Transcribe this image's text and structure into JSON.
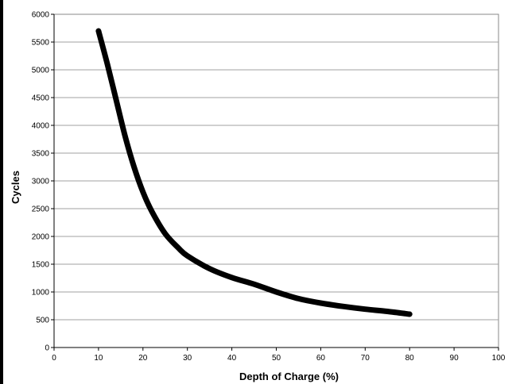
{
  "chart_data": {
    "type": "line",
    "title": "",
    "xlabel": "Depth of Charge (%)",
    "ylabel": "Cycles",
    "xlim": [
      0,
      100
    ],
    "ylim": [
      0,
      6000
    ],
    "x_ticks": [
      "0",
      "10",
      "20",
      "30",
      "40",
      "50",
      "60",
      "70",
      "80",
      "90",
      "100"
    ],
    "y_ticks": [
      "0",
      "500",
      "1000",
      "1500",
      "2000",
      "2500",
      "3000",
      "3500",
      "4000",
      "4500",
      "5000",
      "5500",
      "6000"
    ],
    "grid": "horizontal",
    "legend": "none",
    "series": [
      {
        "color": "#000000",
        "points": [
          {
            "x": 10,
            "y": 5700
          },
          {
            "x": 12,
            "y": 5100
          },
          {
            "x": 14,
            "y": 4450
          },
          {
            "x": 16,
            "y": 3800
          },
          {
            "x": 18,
            "y": 3250
          },
          {
            "x": 20,
            "y": 2800
          },
          {
            "x": 22,
            "y": 2450
          },
          {
            "x": 25,
            "y": 2050
          },
          {
            "x": 28,
            "y": 1790
          },
          {
            "x": 30,
            "y": 1650
          },
          {
            "x": 35,
            "y": 1420
          },
          {
            "x": 40,
            "y": 1260
          },
          {
            "x": 45,
            "y": 1140
          },
          {
            "x": 50,
            "y": 1000
          },
          {
            "x": 55,
            "y": 880
          },
          {
            "x": 60,
            "y": 800
          },
          {
            "x": 65,
            "y": 740
          },
          {
            "x": 70,
            "y": 690
          },
          {
            "x": 75,
            "y": 650
          },
          {
            "x": 80,
            "y": 600
          }
        ]
      }
    ]
  }
}
